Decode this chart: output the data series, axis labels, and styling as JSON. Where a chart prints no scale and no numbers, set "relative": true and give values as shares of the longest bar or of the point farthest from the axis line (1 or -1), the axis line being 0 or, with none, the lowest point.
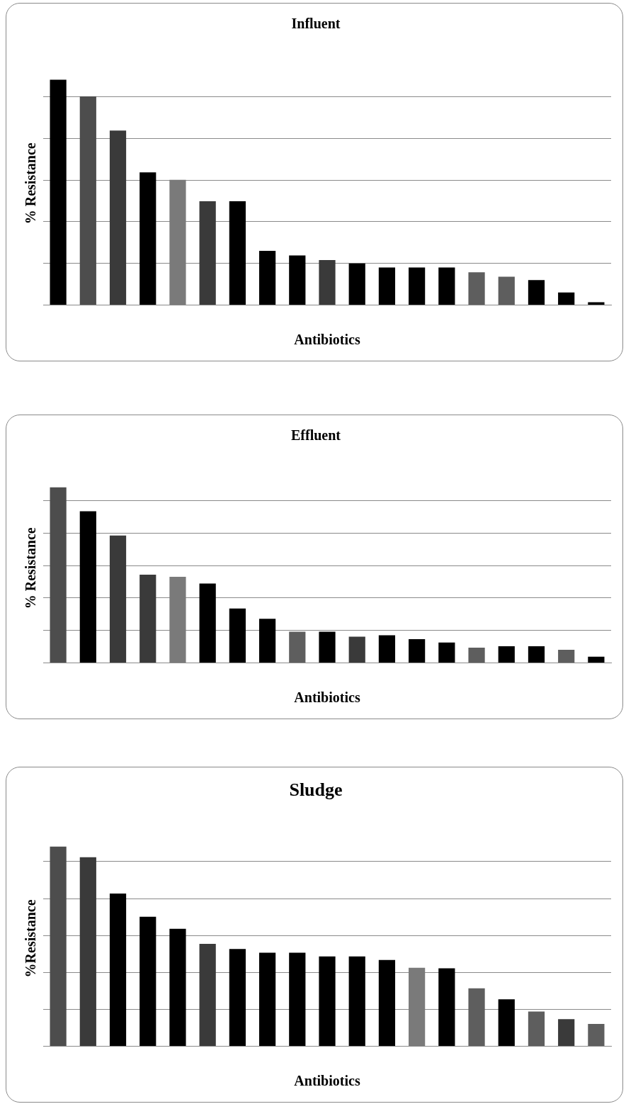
{
  "chart_data": [
    {
      "type": "bar",
      "title": "Influent",
      "xlabel": "Antibiotics",
      "ylabel": "% Resistance",
      "relative": true,
      "grid": "y",
      "categories": [
        null,
        null,
        null,
        null,
        null,
        null,
        null,
        null,
        null,
        null,
        null,
        null,
        null,
        null,
        null,
        null,
        null,
        null,
        null
      ],
      "values": [
        1,
        0.926,
        0.774,
        0.589,
        0.556,
        0.461,
        0.461,
        0.241,
        0.22,
        0.2,
        0.185,
        0.167,
        0.167,
        0.167,
        0.146,
        0.126,
        0.111,
        0.056,
        0.013
      ],
      "colors": [
        "#000000",
        "#4d4d4d",
        "#3a3a3a",
        "#000000",
        "#7a7a7a",
        "#3a3a3a",
        "#000000",
        "#000000",
        "#000000",
        "#3a3a3a",
        "#000000",
        "#000000",
        "#000000",
        "#000000",
        "#5e5e5e",
        "#5e5e5e",
        "#000000",
        "#000000",
        "#000000"
      ]
    },
    {
      "type": "bar",
      "title": "Effluent",
      "xlabel": "Antibiotics",
      "ylabel": "% Resistance",
      "relative": true,
      "grid": "y",
      "categories": [
        null,
        null,
        null,
        null,
        null,
        null,
        null,
        null,
        null,
        null,
        null,
        null,
        null,
        null,
        null,
        null,
        null,
        null,
        null
      ],
      "values": [
        1,
        0.864,
        0.726,
        0.503,
        0.491,
        0.452,
        0.31,
        0.252,
        0.178,
        0.178,
        0.15,
        0.158,
        0.136,
        0.116,
        0.087,
        0.095,
        0.095,
        0.075,
        0.036
      ],
      "colors": [
        "#4d4d4d",
        "#000000",
        "#3a3a3a",
        "#3a3a3a",
        "#7a7a7a",
        "#000000",
        "#000000",
        "#000000",
        "#5e5e5e",
        "#000000",
        "#3a3a3a",
        "#000000",
        "#000000",
        "#000000",
        "#5e5e5e",
        "#000000",
        "#000000",
        "#5e5e5e",
        "#000000"
      ]
    },
    {
      "type": "bar",
      "title": "Sludge",
      "xlabel": "Antibiotics",
      "ylabel": "%Resistance",
      "relative": true,
      "grid": "y",
      "categories": [
        null,
        null,
        null,
        null,
        null,
        null,
        null,
        null,
        null,
        null,
        null,
        null,
        null,
        null,
        null,
        null,
        null,
        null,
        null
      ],
      "values": [
        1,
        0.947,
        0.765,
        0.649,
        0.588,
        0.513,
        0.487,
        0.469,
        0.469,
        0.45,
        0.45,
        0.432,
        0.393,
        0.391,
        0.29,
        0.235,
        0.174,
        0.136,
        0.112
      ],
      "colors": [
        "#4d4d4d",
        "#3a3a3a",
        "#000000",
        "#000000",
        "#000000",
        "#3a3a3a",
        "#000000",
        "#000000",
        "#000000",
        "#000000",
        "#000000",
        "#000000",
        "#7a7a7a",
        "#000000",
        "#5e5e5e",
        "#000000",
        "#5e5e5e",
        "#3a3a3a",
        "#5e5e5e"
      ]
    }
  ]
}
